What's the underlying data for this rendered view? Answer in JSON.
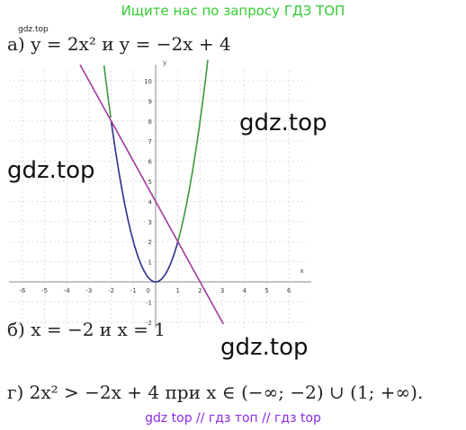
{
  "header": {
    "banner": "Ищите нас по запросу ГДЗ ТОП",
    "small_mark": "gdz.top"
  },
  "part_a": "а) y = 2x²   и   y = −2x + 4",
  "graph": {
    "x_axis_label": "x",
    "y_axis_label": "y",
    "x_tick_labels": [
      "-6",
      "-5",
      "-4",
      "-3",
      "-2",
      "-1",
      "1",
      "2",
      "3",
      "4",
      "5",
      "6"
    ],
    "y_tick_labels": [
      "10",
      "9",
      "8",
      "7",
      "6",
      "5",
      "4",
      "3",
      "2",
      "1",
      "-1",
      "-2"
    ],
    "origin_label": "0"
  },
  "watermarks": [
    "gdz.top",
    "gdz.top",
    "gdz.top"
  ],
  "part_b": "б) x = −2   и   x = 1",
  "part_g": "г) 2x² > −2x + 4  при  x ∈ (−∞; −2) ∪ (1; +∞).",
  "footer": "gdz top  //  гдз топ  //  гдз top"
}
